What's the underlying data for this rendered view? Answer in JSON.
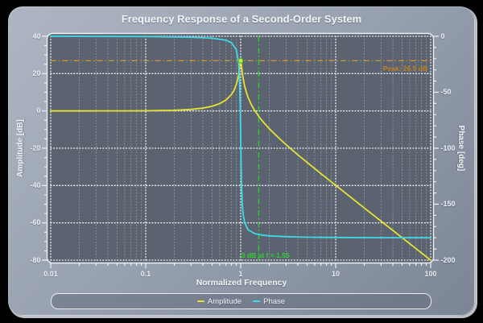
{
  "chart_data": {
    "type": "line",
    "title": "Frequency Response of a Second-Order System",
    "xlabel": "Normalized Frequency",
    "ylabel_left": "Amplitude [dB]",
    "ylabel_right": "Phase [deg]",
    "x_scale": "log",
    "xlim": [
      0.01,
      100
    ],
    "x_tick_values": [
      0.01,
      0.1,
      1,
      10,
      100
    ],
    "x_tick_labels": [
      "0.01",
      "0.1",
      "1",
      "10",
      "100"
    ],
    "ylim_left": [
      -80,
      40
    ],
    "y_left_tick_values": [
      40,
      20,
      0,
      -20,
      -40,
      -60,
      -80
    ],
    "ylim_right": [
      -200,
      0
    ],
    "y_right_tick_values": [
      0,
      -50,
      -100,
      -150,
      -200
    ],
    "grid": "white dotted major grid; dotted log minor verticals",
    "legend_position": "bottom",
    "legend": [
      {
        "label": "Amplitude",
        "color": "#e6e332"
      },
      {
        "label": "Phase",
        "color": "#3fd9e6"
      }
    ],
    "series": [
      {
        "name": "Amplitude",
        "axis": "left",
        "color": "#e6e332",
        "points": [
          [
            0.01,
            0.0
          ],
          [
            0.02,
            0.0
          ],
          [
            0.03,
            0.01
          ],
          [
            0.05,
            0.02
          ],
          [
            0.07,
            0.04
          ],
          [
            0.1,
            0.09
          ],
          [
            0.15,
            0.2
          ],
          [
            0.2,
            0.35
          ],
          [
            0.3,
            0.82
          ],
          [
            0.4,
            1.51
          ],
          [
            0.5,
            2.5
          ],
          [
            0.6,
            3.87
          ],
          [
            0.7,
            5.83
          ],
          [
            0.8,
            8.83
          ],
          [
            0.85,
            11.05
          ],
          [
            0.9,
            14.23
          ],
          [
            0.93,
            16.98
          ],
          [
            0.95,
            19.45
          ],
          [
            0.97,
            22.66
          ],
          [
            0.98,
            24.52
          ],
          [
            0.99,
            26.19
          ],
          [
            1.0,
            26.9
          ],
          [
            1.01,
            26.03
          ],
          [
            1.02,
            24.24
          ],
          [
            1.04,
            20.52
          ],
          [
            1.06,
            17.55
          ],
          [
            1.1,
            13.32
          ],
          [
            1.15,
            9.72
          ],
          [
            1.2,
            7.07
          ],
          [
            1.3,
            3.19
          ],
          [
            1.4,
            0.34
          ],
          [
            1.55,
            -2.95
          ],
          [
            1.7,
            -5.54
          ],
          [
            2.0,
            -9.54
          ],
          [
            2.5,
            -14.4
          ],
          [
            3.0,
            -18.06
          ],
          [
            4.0,
            -23.52
          ],
          [
            5.0,
            -27.6
          ],
          [
            7.0,
            -33.62
          ],
          [
            10,
            -39.91
          ],
          [
            15,
            -47.0
          ],
          [
            20,
            -52.02
          ],
          [
            30,
            -59.07
          ],
          [
            50,
            -67.95
          ],
          [
            70,
            -73.8
          ],
          [
            100,
            -80.0
          ]
        ]
      },
      {
        "name": "Phase",
        "axis": "right",
        "color": "#3fd9e6",
        "points": [
          [
            0.01,
            0.0
          ],
          [
            0.1,
            -0.26
          ],
          [
            0.3,
            -0.85
          ],
          [
            0.5,
            -1.73
          ],
          [
            0.7,
            -3.55
          ],
          [
            0.8,
            -5.74
          ],
          [
            0.9,
            -12.1
          ],
          [
            0.95,
            -23.8
          ],
          [
            0.97,
            -36.6
          ],
          [
            0.99,
            -66.0
          ],
          [
            1.0,
            -90.0
          ],
          [
            1.01,
            -113.7
          ],
          [
            1.02,
            -131.2
          ],
          [
            1.04,
            -150.0
          ],
          [
            1.06,
            -158.8
          ],
          [
            1.1,
            -166.7
          ],
          [
            1.2,
            -173.0
          ],
          [
            1.4,
            -176.2
          ],
          [
            1.7,
            -177.7
          ],
          [
            2.0,
            -178.3
          ],
          [
            3.0,
            -179.0
          ],
          [
            5.0,
            -179.5
          ],
          [
            10,
            -179.7
          ],
          [
            30,
            -179.9
          ],
          [
            100,
            -180.0
          ]
        ]
      }
    ],
    "annotations": {
      "peak_line": {
        "type": "hline",
        "axis": "left",
        "value": 26.9,
        "style": "dash-dot",
        "color": "#d2992a",
        "label": "Peak: 26.9 dB",
        "label_color": "#c08020"
      },
      "cutoff_line": {
        "type": "vline",
        "value": 1.55,
        "style": "dash-dot",
        "color": "#2dd22d",
        "label": "-3 dB at f = 1.55",
        "label_color": "#2dd22d"
      },
      "peak_marker": {
        "f": 1.0,
        "db": 26.9,
        "color": "#cdee33",
        "edge": "#49b83c"
      }
    },
    "colors": {
      "plot_bg": "#5b6370",
      "frame": "#eef2f7",
      "grid": "#ffffff",
      "tick_text": "#eaeff5"
    }
  }
}
